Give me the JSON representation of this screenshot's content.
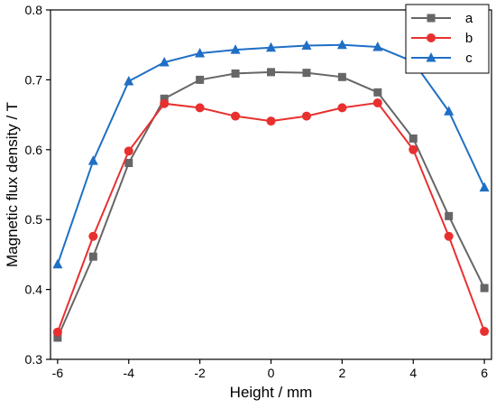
{
  "chart_data": {
    "type": "line",
    "title": "",
    "xlabel": "Height / mm",
    "ylabel": "Magnetic flux density / T",
    "xlim": [
      -6.2,
      6.2
    ],
    "ylim": [
      0.3,
      0.8
    ],
    "xticks": [
      -6,
      -4,
      -2,
      0,
      2,
      4,
      6
    ],
    "yticks": [
      0.3,
      0.4,
      0.5,
      0.6,
      0.7,
      0.8
    ],
    "grid": false,
    "legend_position": "top-right",
    "x": [
      -6,
      -5,
      -4,
      -3,
      -2,
      -1,
      0,
      1,
      2,
      3,
      4,
      5,
      6
    ],
    "series": [
      {
        "name": "a",
        "color": "#666666",
        "marker": "square",
        "values": [
          0.331,
          0.447,
          0.581,
          0.673,
          0.7,
          0.709,
          0.711,
          0.71,
          0.704,
          0.682,
          0.616,
          0.505,
          0.402
        ]
      },
      {
        "name": "b",
        "color": "#e8302f",
        "marker": "circle",
        "values": [
          0.339,
          0.476,
          0.598,
          0.666,
          0.66,
          0.648,
          0.641,
          0.648,
          0.66,
          0.667,
          0.6,
          0.476,
          0.34
        ]
      },
      {
        "name": "c",
        "color": "#1f6fc5",
        "marker": "triangle",
        "values": [
          0.436,
          0.584,
          0.698,
          0.725,
          0.738,
          0.743,
          0.746,
          0.749,
          0.75,
          0.747,
          0.726,
          0.655,
          0.546
        ]
      }
    ]
  }
}
